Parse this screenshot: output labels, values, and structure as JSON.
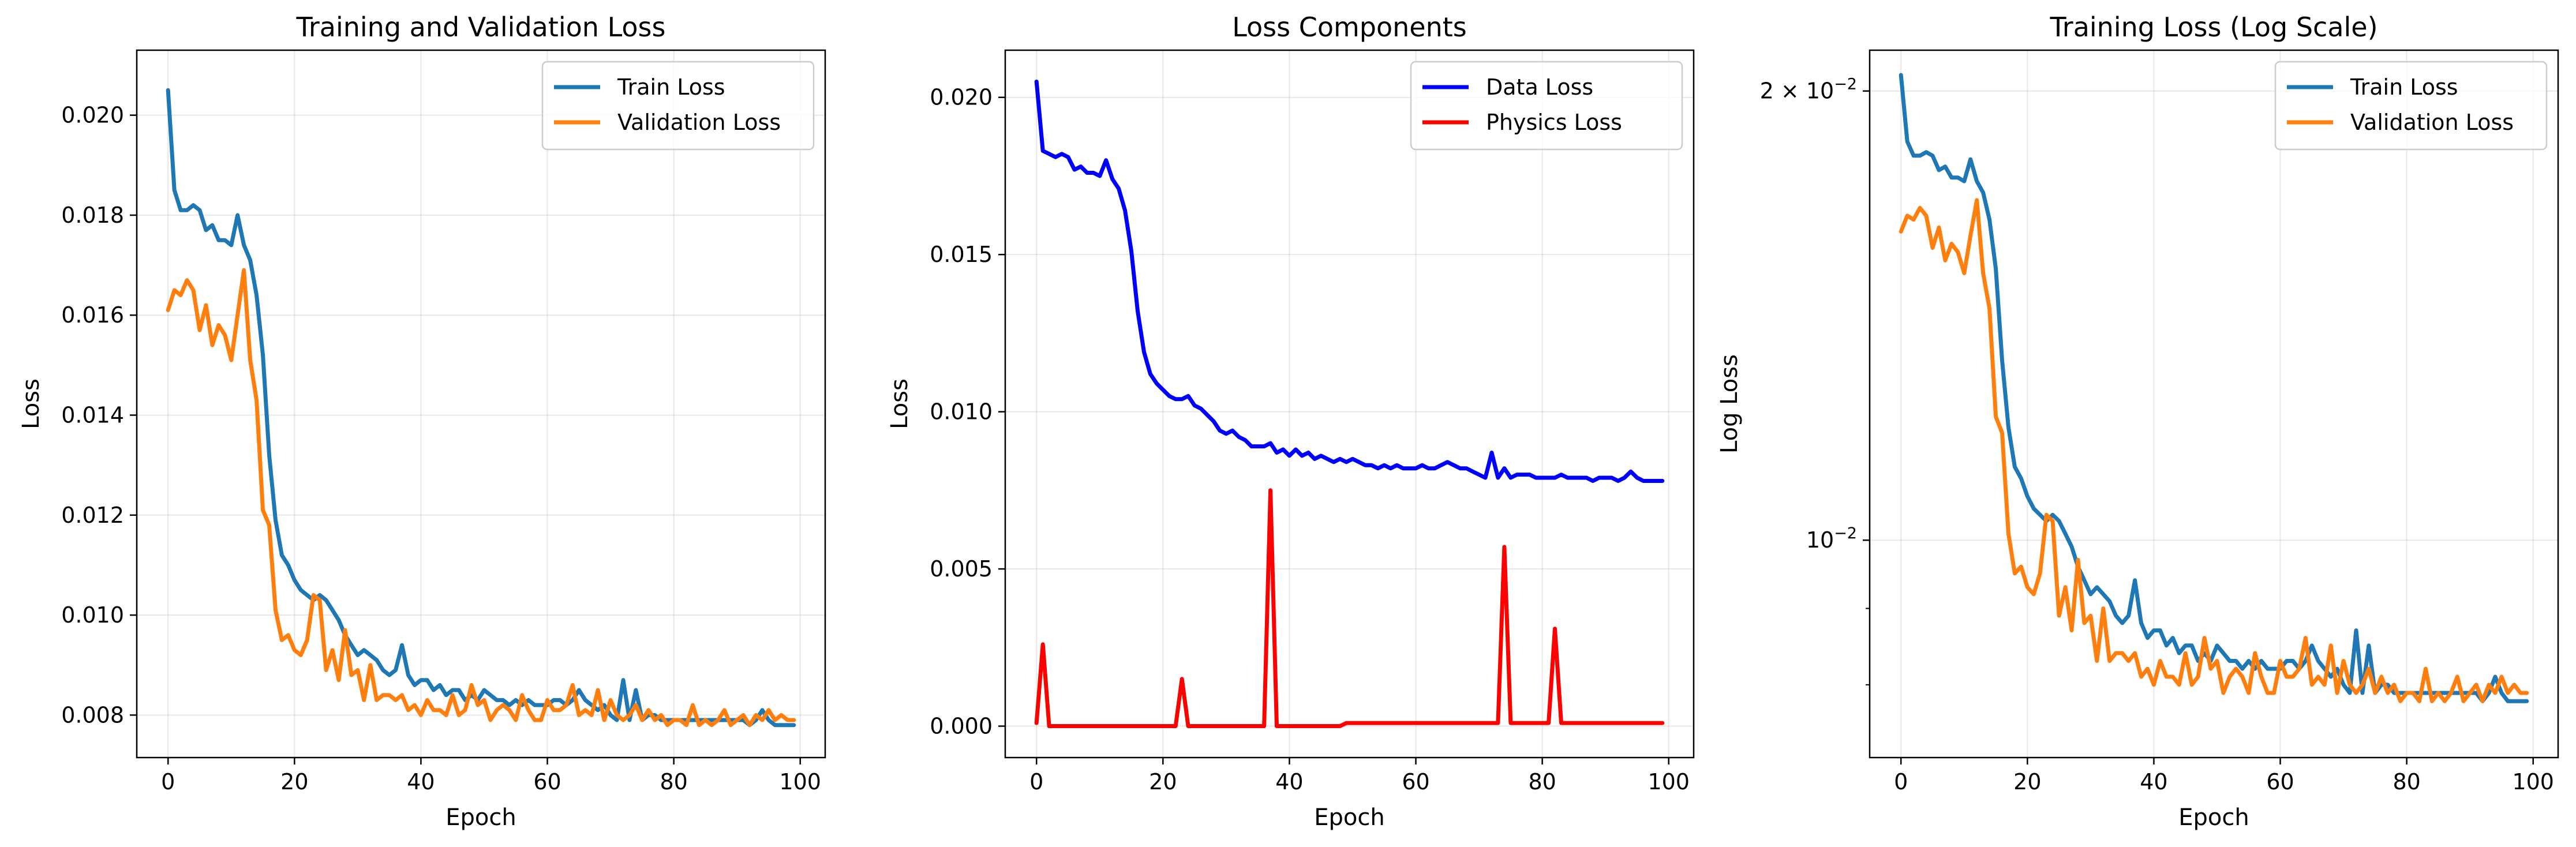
{
  "chart_data": [
    {
      "type": "line",
      "title": "Training and Validation Loss",
      "xlabel": "Epoch",
      "ylabel": "Loss",
      "xlim": [
        -4.95,
        103.95
      ],
      "ylim": [
        0.00715,
        0.0213
      ],
      "xticks": [
        0,
        20,
        40,
        60,
        80,
        100
      ],
      "xtick_labels": [
        "0",
        "20",
        "40",
        "60",
        "80",
        "100"
      ],
      "yticks": [
        0.008,
        0.01,
        0.012,
        0.014,
        0.016,
        0.018,
        0.02
      ],
      "ytick_labels": [
        "0.008",
        "0.010",
        "0.012",
        "0.014",
        "0.016",
        "0.018",
        "0.020"
      ],
      "yscale": "linear",
      "grid": true,
      "legend_position": "upper right",
      "series": [
        {
          "name": "Train Loss",
          "color": "#1f77b4",
          "values": [
            0.0205,
            0.0185,
            0.0181,
            0.0181,
            0.0182,
            0.0181,
            0.0177,
            0.0178,
            0.0175,
            0.0175,
            0.0174,
            0.018,
            0.0174,
            0.0171,
            0.0164,
            0.0152,
            0.0132,
            0.0119,
            0.0112,
            0.011,
            0.0107,
            0.0105,
            0.0104,
            0.0103,
            0.0104,
            0.0103,
            0.0101,
            0.0099,
            0.0096,
            0.0094,
            0.0092,
            0.0093,
            0.0092,
            0.0091,
            0.0089,
            0.0088,
            0.0089,
            0.0094,
            0.0088,
            0.0086,
            0.0087,
            0.0087,
            0.0085,
            0.0086,
            0.0084,
            0.0085,
            0.0085,
            0.0083,
            0.0084,
            0.0083,
            0.0085,
            0.0084,
            0.0083,
            0.0083,
            0.0082,
            0.0083,
            0.0082,
            0.0083,
            0.0082,
            0.0082,
            0.0082,
            0.0083,
            0.0083,
            0.0082,
            0.0083,
            0.0085,
            0.0083,
            0.0082,
            0.0081,
            0.0082,
            0.008,
            0.0079,
            0.0087,
            0.0079,
            0.0085,
            0.0079,
            0.008,
            0.008,
            0.0079,
            0.0079,
            0.0079,
            0.0079,
            0.0079,
            0.0079,
            0.0079,
            0.0079,
            0.0079,
            0.0079,
            0.0079,
            0.0079,
            0.0079,
            0.0079,
            0.0078,
            0.0079,
            0.0081,
            0.0079,
            0.0078,
            0.0078,
            0.0078,
            0.0078
          ]
        },
        {
          "name": "Validation Loss",
          "color": "#ff7f0e",
          "values": [
            0.0161,
            0.0165,
            0.0164,
            0.0167,
            0.0165,
            0.0157,
            0.0162,
            0.0154,
            0.0158,
            0.0156,
            0.0151,
            0.016,
            0.0169,
            0.0151,
            0.0143,
            0.0121,
            0.0118,
            0.0101,
            0.0095,
            0.0096,
            0.0093,
            0.0092,
            0.0095,
            0.0104,
            0.0103,
            0.0089,
            0.0093,
            0.0087,
            0.0097,
            0.0088,
            0.0089,
            0.0083,
            0.009,
            0.0083,
            0.0084,
            0.0084,
            0.0083,
            0.0084,
            0.0081,
            0.0082,
            0.008,
            0.0083,
            0.0081,
            0.0081,
            0.008,
            0.0084,
            0.008,
            0.0081,
            0.0086,
            0.0082,
            0.0083,
            0.0079,
            0.0081,
            0.0082,
            0.0081,
            0.0079,
            0.0084,
            0.0081,
            0.0079,
            0.0079,
            0.0083,
            0.0081,
            0.0081,
            0.0082,
            0.0086,
            0.008,
            0.0081,
            0.008,
            0.0085,
            0.0079,
            0.0083,
            0.008,
            0.0079,
            0.008,
            0.0082,
            0.0079,
            0.0081,
            0.0079,
            0.008,
            0.0078,
            0.0079,
            0.0079,
            0.0078,
            0.0082,
            0.0078,
            0.0079,
            0.0078,
            0.0079,
            0.0081,
            0.0078,
            0.0079,
            0.008,
            0.0078,
            0.008,
            0.0079,
            0.0081,
            0.0079,
            0.008,
            0.0079,
            0.0079
          ]
        }
      ]
    },
    {
      "type": "line",
      "title": "Loss Components",
      "xlabel": "Epoch",
      "ylabel": "Loss",
      "xlim": [
        -4.95,
        103.95
      ],
      "ylim": [
        -0.001,
        0.0215
      ],
      "xticks": [
        0,
        20,
        40,
        60,
        80,
        100
      ],
      "xtick_labels": [
        "0",
        "20",
        "40",
        "60",
        "80",
        "100"
      ],
      "yticks": [
        0.0,
        0.005,
        0.01,
        0.015,
        0.02
      ],
      "ytick_labels": [
        "0.000",
        "0.005",
        "0.010",
        "0.015",
        "0.020"
      ],
      "yscale": "linear",
      "grid": true,
      "legend_position": "upper right",
      "series": [
        {
          "name": "Data Loss",
          "color": "#0000ff",
          "values": [
            0.0205,
            0.0183,
            0.0182,
            0.0181,
            0.0182,
            0.0181,
            0.0177,
            0.0178,
            0.0176,
            0.0176,
            0.0175,
            0.018,
            0.0174,
            0.0171,
            0.0164,
            0.0151,
            0.0132,
            0.0119,
            0.0112,
            0.0109,
            0.0107,
            0.0105,
            0.0104,
            0.0104,
            0.0105,
            0.0102,
            0.0101,
            0.0099,
            0.0097,
            0.0094,
            0.0093,
            0.0094,
            0.0092,
            0.0091,
            0.0089,
            0.0089,
            0.0089,
            0.009,
            0.0087,
            0.0088,
            0.0086,
            0.0088,
            0.0086,
            0.0087,
            0.0085,
            0.0086,
            0.0085,
            0.0084,
            0.0085,
            0.0084,
            0.0085,
            0.0084,
            0.0083,
            0.0083,
            0.0082,
            0.0083,
            0.0082,
            0.0083,
            0.0082,
            0.0082,
            0.0082,
            0.0083,
            0.0082,
            0.0082,
            0.0083,
            0.0084,
            0.0083,
            0.0082,
            0.0082,
            0.0081,
            0.008,
            0.0079,
            0.0087,
            0.0079,
            0.0082,
            0.0079,
            0.008,
            0.008,
            0.008,
            0.0079,
            0.0079,
            0.0079,
            0.0079,
            0.008,
            0.0079,
            0.0079,
            0.0079,
            0.0079,
            0.0078,
            0.0079,
            0.0079,
            0.0079,
            0.0078,
            0.0079,
            0.0081,
            0.0079,
            0.0078,
            0.0078,
            0.0078,
            0.0078
          ]
        },
        {
          "name": "Physics Loss",
          "color": "#ff0000",
          "values": [
            0.0001,
            0.0026,
            0.0,
            0.0,
            0.0,
            0.0,
            0.0,
            0.0,
            0.0,
            0.0,
            0.0,
            0.0,
            0.0,
            0.0,
            0.0,
            0.0,
            0.0,
            0.0,
            0.0,
            0.0,
            0.0,
            0.0,
            0.0,
            0.0015,
            0.0,
            0.0,
            0.0,
            0.0,
            0.0,
            0.0,
            0.0,
            0.0,
            0.0,
            0.0,
            0.0,
            0.0,
            0.0,
            0.0075,
            0.0,
            0.0,
            0.0,
            0.0,
            0.0,
            0.0,
            0.0,
            0.0,
            0.0,
            0.0,
            0.0,
            0.0001,
            0.0001,
            0.0001,
            0.0001,
            0.0001,
            0.0001,
            0.0001,
            0.0001,
            0.0001,
            0.0001,
            0.0001,
            0.0001,
            0.0001,
            0.0001,
            0.0001,
            0.0001,
            0.0001,
            0.0001,
            0.0001,
            0.0001,
            0.0001,
            0.0001,
            0.0001,
            0.0001,
            0.0001,
            0.0057,
            0.0001,
            0.0001,
            0.0001,
            0.0001,
            0.0001,
            0.0001,
            0.0001,
            0.0031,
            0.0001,
            0.0001,
            0.0001,
            0.0001,
            0.0001,
            0.0001,
            0.0001,
            0.0001,
            0.0001,
            0.0001,
            0.0001,
            0.0001,
            0.0001,
            0.0001,
            0.0001,
            0.0001,
            0.0001
          ]
        }
      ]
    },
    {
      "type": "line",
      "title": "Training Loss (Log Scale)",
      "xlabel": "Epoch",
      "ylabel": "Log Loss",
      "xlim": [
        -4.95,
        103.95
      ],
      "ylim": [
        0.00715,
        0.0213
      ],
      "xticks": [
        0,
        20,
        40,
        60,
        80,
        100
      ],
      "xtick_labels": [
        "0",
        "20",
        "40",
        "60",
        "80",
        "100"
      ],
      "major_yticks": [
        0.01,
        0.02
      ],
      "major_ytick_labels": [
        {
          "base": "10",
          "exp": "−2"
        },
        {
          "base": "2 × 10",
          "exp": "−2"
        }
      ],
      "minor_yticks": [
        0.006,
        0.007,
        0.008,
        0.009,
        0.03
      ],
      "yscale": "log",
      "grid": true,
      "legend_position": "upper right",
      "series": [
        {
          "name": "Train Loss",
          "color": "#1f77b4",
          "values": [
            0.0205,
            0.0185,
            0.0181,
            0.0181,
            0.0182,
            0.0181,
            0.0177,
            0.0178,
            0.0175,
            0.0175,
            0.0174,
            0.018,
            0.0174,
            0.0171,
            0.0164,
            0.0152,
            0.0132,
            0.0119,
            0.0112,
            0.011,
            0.0107,
            0.0105,
            0.0104,
            0.0103,
            0.0104,
            0.0103,
            0.0101,
            0.0099,
            0.0096,
            0.0094,
            0.0092,
            0.0093,
            0.0092,
            0.0091,
            0.0089,
            0.0088,
            0.0089,
            0.0094,
            0.0088,
            0.0086,
            0.0087,
            0.0087,
            0.0085,
            0.0086,
            0.0084,
            0.0085,
            0.0085,
            0.0083,
            0.0084,
            0.0083,
            0.0085,
            0.0084,
            0.0083,
            0.0083,
            0.0082,
            0.0083,
            0.0082,
            0.0083,
            0.0082,
            0.0082,
            0.0082,
            0.0083,
            0.0083,
            0.0082,
            0.0083,
            0.0085,
            0.0083,
            0.0082,
            0.0081,
            0.0082,
            0.008,
            0.0079,
            0.0087,
            0.0079,
            0.0085,
            0.0079,
            0.008,
            0.008,
            0.0079,
            0.0079,
            0.0079,
            0.0079,
            0.0079,
            0.0079,
            0.0079,
            0.0079,
            0.0079,
            0.0079,
            0.0079,
            0.0079,
            0.0079,
            0.0079,
            0.0078,
            0.0079,
            0.0081,
            0.0079,
            0.0078,
            0.0078,
            0.0078,
            0.0078
          ]
        },
        {
          "name": "Validation Loss",
          "color": "#ff7f0e",
          "values": [
            0.0161,
            0.0165,
            0.0164,
            0.0167,
            0.0165,
            0.0157,
            0.0162,
            0.0154,
            0.0158,
            0.0156,
            0.0151,
            0.016,
            0.0169,
            0.0151,
            0.0143,
            0.0121,
            0.0118,
            0.0101,
            0.0095,
            0.0096,
            0.0093,
            0.0092,
            0.0095,
            0.0104,
            0.0103,
            0.0089,
            0.0093,
            0.0087,
            0.0097,
            0.0088,
            0.0089,
            0.0083,
            0.009,
            0.0083,
            0.0084,
            0.0084,
            0.0083,
            0.0084,
            0.0081,
            0.0082,
            0.008,
            0.0083,
            0.0081,
            0.0081,
            0.008,
            0.0084,
            0.008,
            0.0081,
            0.0086,
            0.0082,
            0.0083,
            0.0079,
            0.0081,
            0.0082,
            0.0081,
            0.0079,
            0.0084,
            0.0081,
            0.0079,
            0.0079,
            0.0083,
            0.0081,
            0.0081,
            0.0082,
            0.0086,
            0.008,
            0.0081,
            0.008,
            0.0085,
            0.0079,
            0.0083,
            0.008,
            0.0079,
            0.008,
            0.0082,
            0.0079,
            0.0081,
            0.0079,
            0.008,
            0.0078,
            0.0079,
            0.0079,
            0.0078,
            0.0082,
            0.0078,
            0.0079,
            0.0078,
            0.0079,
            0.0081,
            0.0078,
            0.0079,
            0.008,
            0.0078,
            0.008,
            0.0079,
            0.0081,
            0.0079,
            0.008,
            0.0079,
            0.0079
          ]
        }
      ]
    }
  ]
}
